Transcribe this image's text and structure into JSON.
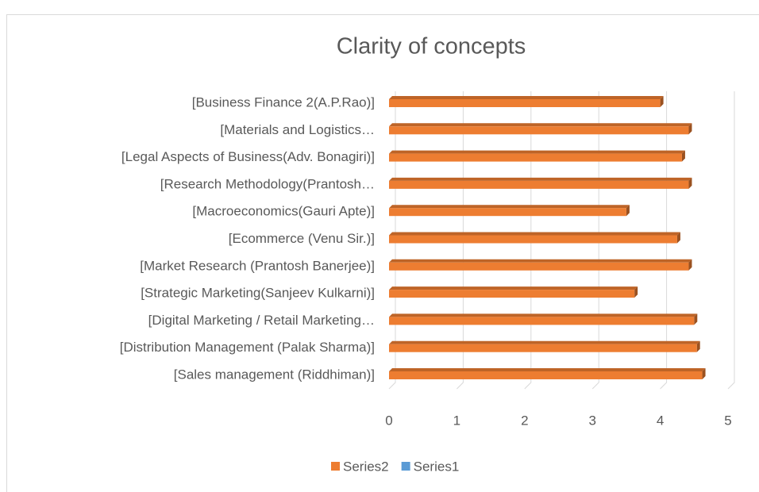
{
  "chart_data": {
    "type": "bar",
    "orientation": "horizontal",
    "title": "Clarity of concepts",
    "categories": [
      "[Sales management (Riddhiman)]",
      "[Distribution Management (Palak Sharma)]",
      "[Digital Marketing / Retail Marketing…",
      "[Strategic Marketing(Sanjeev Kulkarni)]",
      "[Market Research (Prantosh Banerjee)]",
      "[Ecommerce (Venu Sir.)]",
      "[Macroeconomics(Gauri Apte)]",
      "[Research Methodology(Prantosh…",
      "[Legal Aspects of Business(Adv. Bonagiri)]",
      "[Materials and Logistics…",
      "[Business Finance 2(A.P.Rao)]"
    ],
    "series": [
      {
        "name": "Series2",
        "color": "#ed7d31",
        "values": [
          4.62,
          4.54,
          4.5,
          3.62,
          4.42,
          4.25,
          3.5,
          4.42,
          4.32,
          4.42,
          4.0
        ]
      },
      {
        "name": "Series1",
        "color": "#5b9bd5",
        "values": [
          null,
          null,
          null,
          null,
          null,
          null,
          null,
          null,
          null,
          null,
          null
        ]
      }
    ],
    "xlim": [
      0,
      5
    ],
    "xticks": [
      0,
      1,
      2,
      3,
      4,
      5
    ],
    "grid": true,
    "legend": "bottom"
  }
}
